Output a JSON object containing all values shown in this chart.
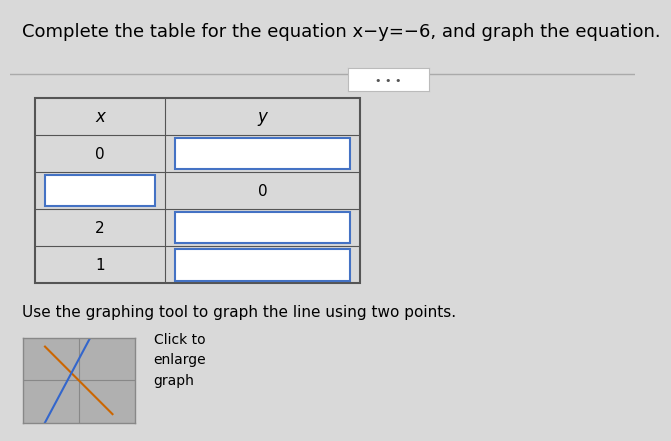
{
  "title": "Complete the table for the equation x−y=−6, and graph the equation.",
  "title_font_size": 13,
  "background_color": "#d9d9d9",
  "col_headers": [
    "x",
    "y"
  ],
  "input_box_color": "#ffffff",
  "input_box_border": "#4472c4",
  "subtitle": "Use the graphing tool to graph the line using two points.",
  "subtitle_font_size": 11,
  "graph_button_text": "Click to\nenlarge\ngraph",
  "graph_button_font_size": 10,
  "x_vals": [
    "0",
    null,
    "2",
    "1"
  ],
  "y_vals": [
    null,
    "0",
    null,
    null
  ],
  "x_box": [
    false,
    true,
    false,
    false
  ],
  "y_box": [
    true,
    false,
    true,
    true
  ]
}
